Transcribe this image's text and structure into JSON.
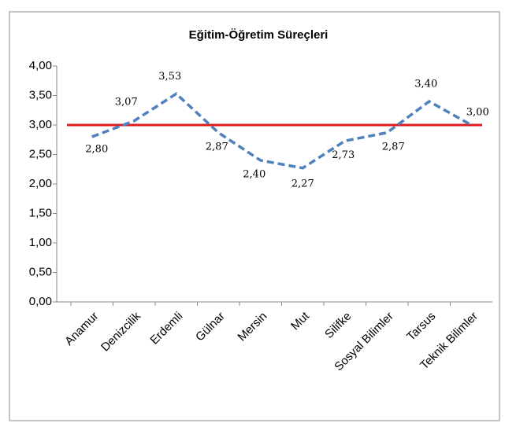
{
  "chart_data": {
    "type": "line",
    "title": "Eğitim-Öğretim Süreçleri",
    "categories": [
      "Anamur",
      "Denizcilik",
      "Erdemli",
      "Gülnar",
      "Mersin",
      "Mut",
      "Silifke",
      "Sosyal Bilimler",
      "Tarsus",
      "Teknik Bilimler"
    ],
    "series": [
      {
        "color": "#4f81bd",
        "values": [
          2.8,
          3.07,
          3.53,
          2.87,
          2.4,
          2.27,
          2.73,
          2.87,
          3.4,
          3.0
        ],
        "value_labels": [
          "2,80",
          "3,07",
          "3,53",
          "2,87",
          "2,40",
          "2,27",
          "2,73",
          "2,87",
          "3,40",
          "3,00"
        ]
      }
    ],
    "reference_line": {
      "value": 3,
      "color": "#e31a1c"
    },
    "ylim": [
      0,
      4
    ],
    "yticks": [
      {
        "value": 0,
        "label": "0,00"
      },
      {
        "value": 0.5,
        "label": "0,50"
      },
      {
        "value": 1,
        "label": "1,00"
      },
      {
        "value": 1.5,
        "label": "1,50"
      },
      {
        "value": 2,
        "label": "2,00"
      },
      {
        "value": 2.5,
        "label": "2,50"
      },
      {
        "value": 3,
        "label": "3,00"
      },
      {
        "value": 3.5,
        "label": "3,50"
      },
      {
        "value": 4,
        "label": "4,00"
      }
    ],
    "grid": false
  }
}
